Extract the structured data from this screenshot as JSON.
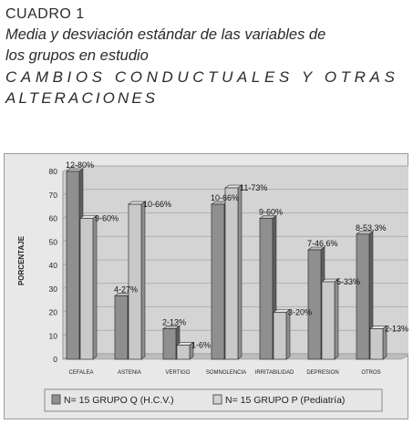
{
  "header": {
    "line1": "CUADRO  1",
    "line2": "Media y desviación estándar de las variables de",
    "line3": "los grupos en estudio",
    "line4": "CAMBIOS  CONDUCTUALES  Y  OTRAS",
    "line5": "ALTERACIONES"
  },
  "chart_data": {
    "type": "bar",
    "ylabel": "PORCENTAJE",
    "ylim": [
      0,
      80
    ],
    "yticks": [
      0,
      10,
      20,
      30,
      40,
      50,
      60,
      70,
      80
    ],
    "categories": [
      "CEFALEA",
      "ASTENIA",
      "VERTIGO",
      "SOMNOLENCIA",
      "IRRITABILIDAD",
      "DEPRESION",
      "OTROS"
    ],
    "series": [
      {
        "name": "N=  15 GRUPO Q (H.C.V.)",
        "values": [
          80,
          27,
          13,
          66,
          60,
          46.6,
          53.3
        ],
        "labels": [
          "12-80%",
          "4-27%",
          "2-13%",
          "10-66%",
          "9-60%",
          "7-46,6%",
          "8-53,3%"
        ]
      },
      {
        "name": "N= 15 GRUPO   P (Pediatría)",
        "values": [
          60,
          66,
          6,
          73,
          20,
          33,
          13
        ],
        "labels": [
          "9-60%",
          "10-66%",
          "1-6%",
          "11-73%",
          "3-20%",
          "5-33%",
          "2-13%"
        ]
      }
    ],
    "grid": true,
    "legend": "bottom",
    "colors": {
      "q_face": "#8f8f8f",
      "p_face": "#c9c9c9",
      "wall": "#d0d0d0",
      "outer": "#e6e6e6"
    }
  }
}
